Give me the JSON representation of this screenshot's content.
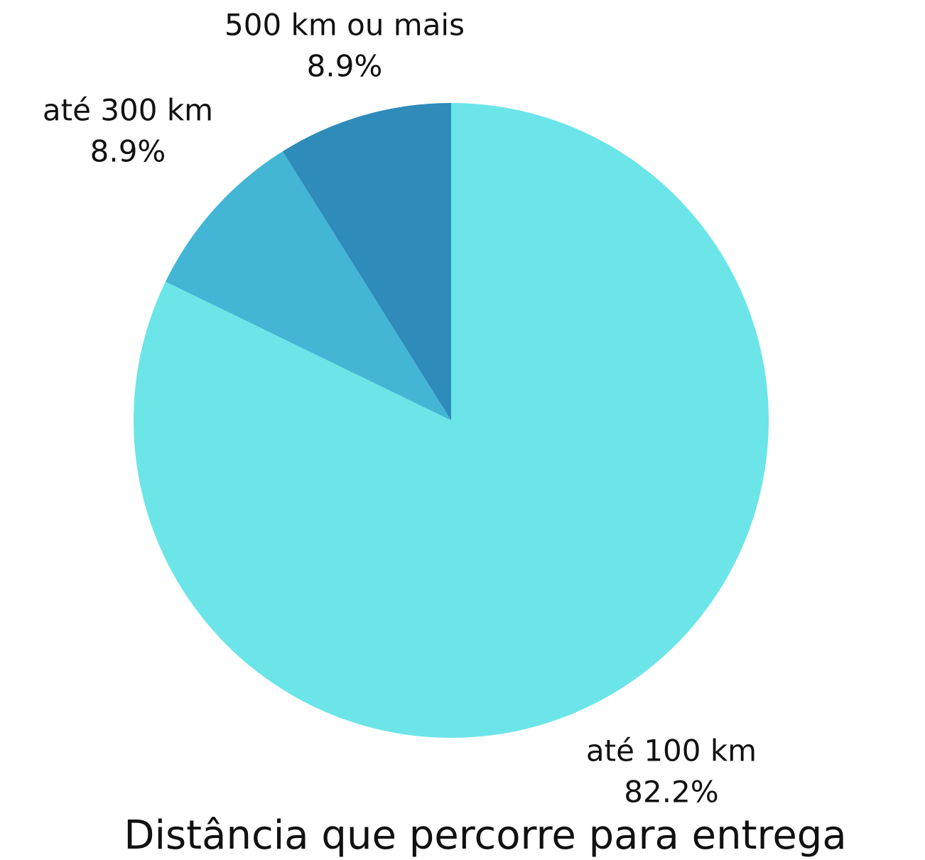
{
  "chart_data": {
    "type": "pie",
    "title": "Distância que percorre para entrega",
    "categories": [
      "até 100 km",
      "até 300 km",
      "500 km ou mais"
    ],
    "values": [
      82.2,
      8.9,
      8.9
    ],
    "value_labels": [
      "82.2%",
      "8.9%",
      "8.9%"
    ],
    "colors": [
      "#6ce5e8",
      "#42b6d4",
      "#2e8bba"
    ]
  }
}
